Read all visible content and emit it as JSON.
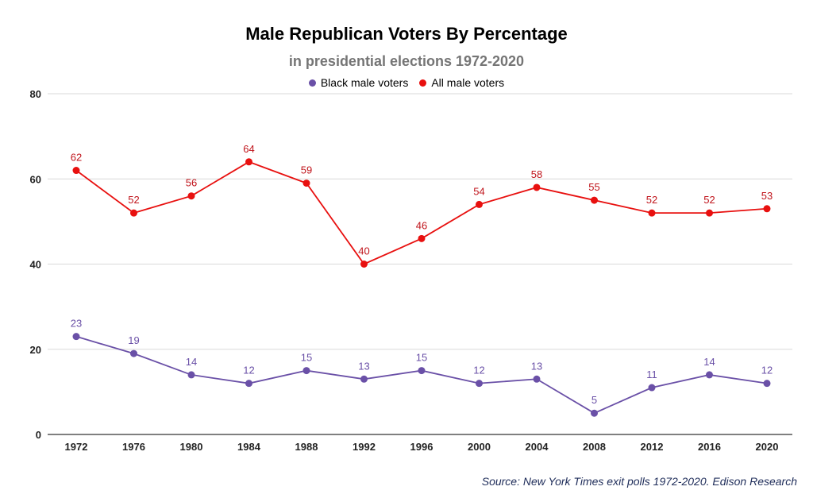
{
  "chart_data": {
    "type": "line",
    "title": "Male Republican Voters By Percentage",
    "subtitle": "in presidential elections 1972-2020",
    "categories": [
      "1972",
      "1976",
      "1980",
      "1984",
      "1988",
      "1992",
      "1996",
      "2000",
      "2004",
      "2008",
      "2012",
      "2016",
      "2020"
    ],
    "series": [
      {
        "name": "Black male voters",
        "color": "#6a50a7",
        "values": [
          23,
          19,
          14,
          12,
          15,
          13,
          15,
          12,
          13,
          5,
          11,
          14,
          12
        ]
      },
      {
        "name": "All male voters",
        "color": "#e8100f",
        "values": [
          62,
          52,
          56,
          64,
          59,
          40,
          46,
          54,
          58,
          55,
          52,
          52,
          53
        ]
      }
    ],
    "ylim": [
      0,
      80
    ],
    "yticks": [
      0,
      20,
      40,
      60,
      80
    ],
    "grid": true,
    "legend_position": "top",
    "source": "Source: New York Times exit polls 1972-2020. Edison Research"
  }
}
